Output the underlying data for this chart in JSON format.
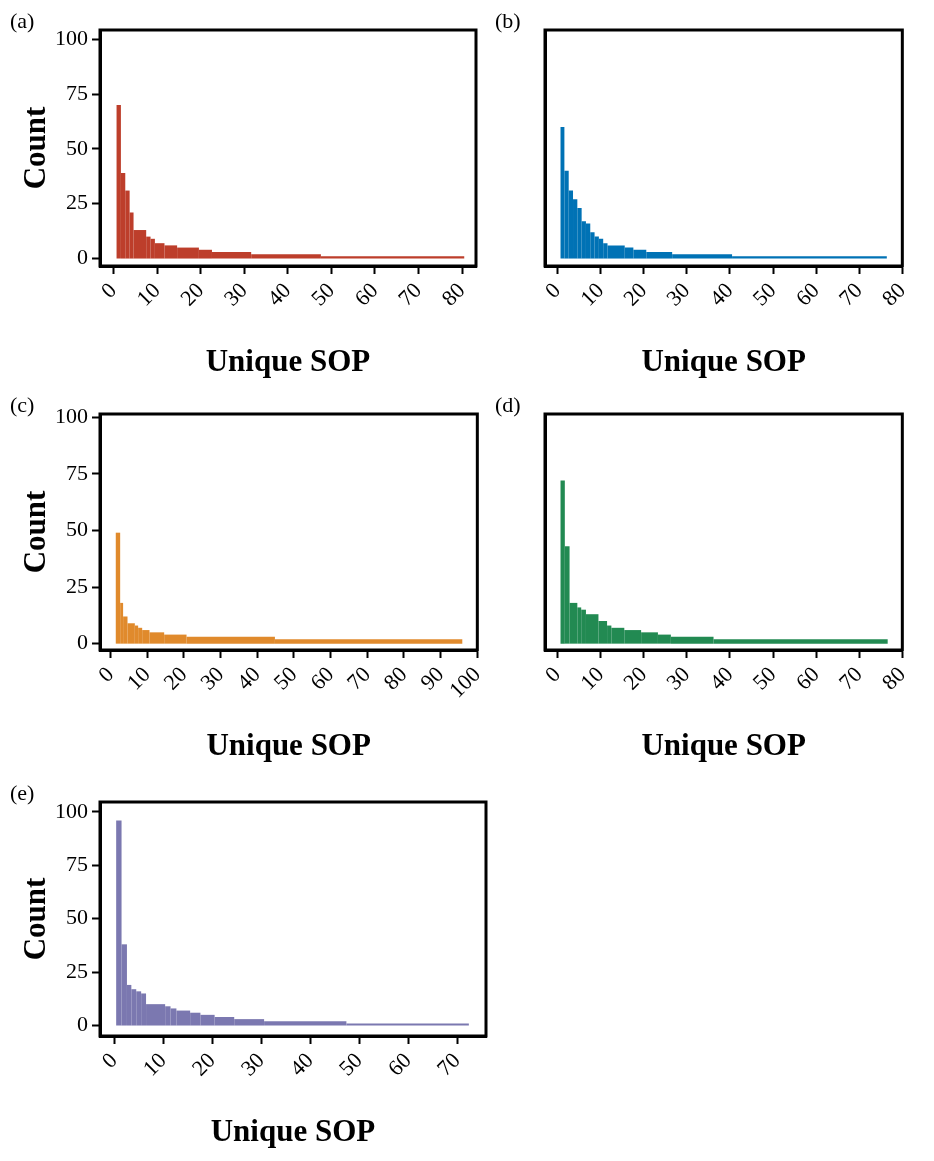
{
  "chart_data": [
    {
      "type": "histogram",
      "title": "(a)",
      "xlabel": "Unique SOP",
      "ylabel": "Count",
      "color": "#bd3e2b",
      "grid": false,
      "bins": [
        0.7,
        1.7,
        2.7,
        3.7,
        4.6,
        7.5,
        8.5,
        9.5,
        11.7,
        14.6,
        19.6,
        22.6,
        31.6,
        47.6,
        80.5
      ],
      "values": [
        70,
        39,
        31,
        21,
        13,
        10,
        9,
        7,
        6,
        5,
        4,
        3,
        2,
        1
      ],
      "xlim": [
        -3.1,
        83.2
      ],
      "ylim": [
        -3.4,
        104.2
      ],
      "xticks": [
        0,
        10,
        20,
        30,
        40,
        50,
        60,
        70,
        80
      ],
      "yticks": [
        0,
        25,
        50,
        75,
        100
      ]
    },
    {
      "type": "histogram",
      "title": "(b)",
      "xlabel": "Unique SOP",
      "color": "#0072b5",
      "grid": false,
      "tick_labels": "x",
      "bins": [
        0.7,
        1.6,
        2.6,
        3.6,
        4.6,
        5.6,
        6.6,
        7.6,
        8.6,
        9.6,
        10.6,
        11.6,
        15.6,
        17.6,
        20.6,
        26.6,
        40.5,
        76.4
      ],
      "values": [
        60,
        40,
        31,
        27,
        23,
        17,
        16,
        12,
        10,
        9,
        7,
        6,
        5,
        4,
        3,
        2,
        1
      ],
      "xlim": [
        -2.9,
        80
      ],
      "ylim": [
        -3.4,
        104.2
      ],
      "xticks": [
        0,
        10,
        20,
        30,
        40,
        50,
        60,
        70,
        80
      ],
      "yticks": [
        0,
        25,
        50,
        75,
        100
      ]
    },
    {
      "type": "histogram",
      "title": "(c)",
      "xlabel": "Unique SOP",
      "ylabel": "Count",
      "color": "#e08a2c",
      "grid": false,
      "bins": [
        1.4,
        2.6,
        3.4,
        4.6,
        6.6,
        7.5,
        8.6,
        10.6,
        14.6,
        20.7,
        44.8,
        95.9
      ],
      "values": [
        49,
        18,
        12,
        9,
        8,
        7,
        6,
        5,
        4,
        3,
        2
      ],
      "xlim": [
        -2.9,
        100
      ],
      "ylim": [
        -2.8,
        101.4
      ],
      "xticks": [
        0,
        10,
        20,
        30,
        40,
        50,
        60,
        70,
        80,
        90,
        100
      ],
      "yticks": [
        0,
        25,
        50,
        75,
        100
      ]
    },
    {
      "type": "histogram",
      "title": "(d)",
      "xlabel": "Unique SOP",
      "color": "#228a52",
      "grid": false,
      "tick_labels": "x",
      "bins": [
        0.7,
        1.7,
        2.8,
        4.6,
        5.5,
        6.6,
        9.5,
        11.5,
        12.5,
        15.5,
        19.4,
        23.3,
        26.3,
        36.2,
        76.6
      ],
      "values": [
        72,
        43,
        18,
        16,
        15,
        13,
        10,
        8,
        7,
        6,
        5,
        4,
        3,
        2
      ],
      "xlim": [
        -2.9,
        80
      ],
      "ylim": [
        -2.8,
        101.4
      ],
      "xticks": [
        0,
        10,
        20,
        30,
        40,
        50,
        60,
        70,
        80
      ],
      "yticks": [
        0,
        25,
        50,
        75,
        100
      ]
    },
    {
      "type": "histogram",
      "title": "(e)",
      "xlabel": "Unique SOP",
      "ylabel": "Count",
      "color": "#7b78b0",
      "grid": false,
      "bins": [
        0.4,
        1.5,
        2.6,
        3.5,
        4.5,
        5.5,
        6.5,
        10.4,
        11.5,
        12.7,
        15.5,
        17.6,
        20.5,
        24.5,
        30.6,
        47.4,
        72.4
      ],
      "values": [
        96,
        38,
        19,
        17,
        16,
        15,
        10,
        9,
        8,
        7,
        6,
        5,
        4,
        3,
        2,
        1
      ],
      "xlim": [
        -2.9,
        75.9
      ],
      "ylim": [
        -4.9,
        104.6
      ],
      "xticks": [
        0,
        10,
        20,
        30,
        40,
        50,
        60,
        70
      ],
      "yticks": [
        0,
        25,
        50,
        75,
        100
      ]
    }
  ]
}
